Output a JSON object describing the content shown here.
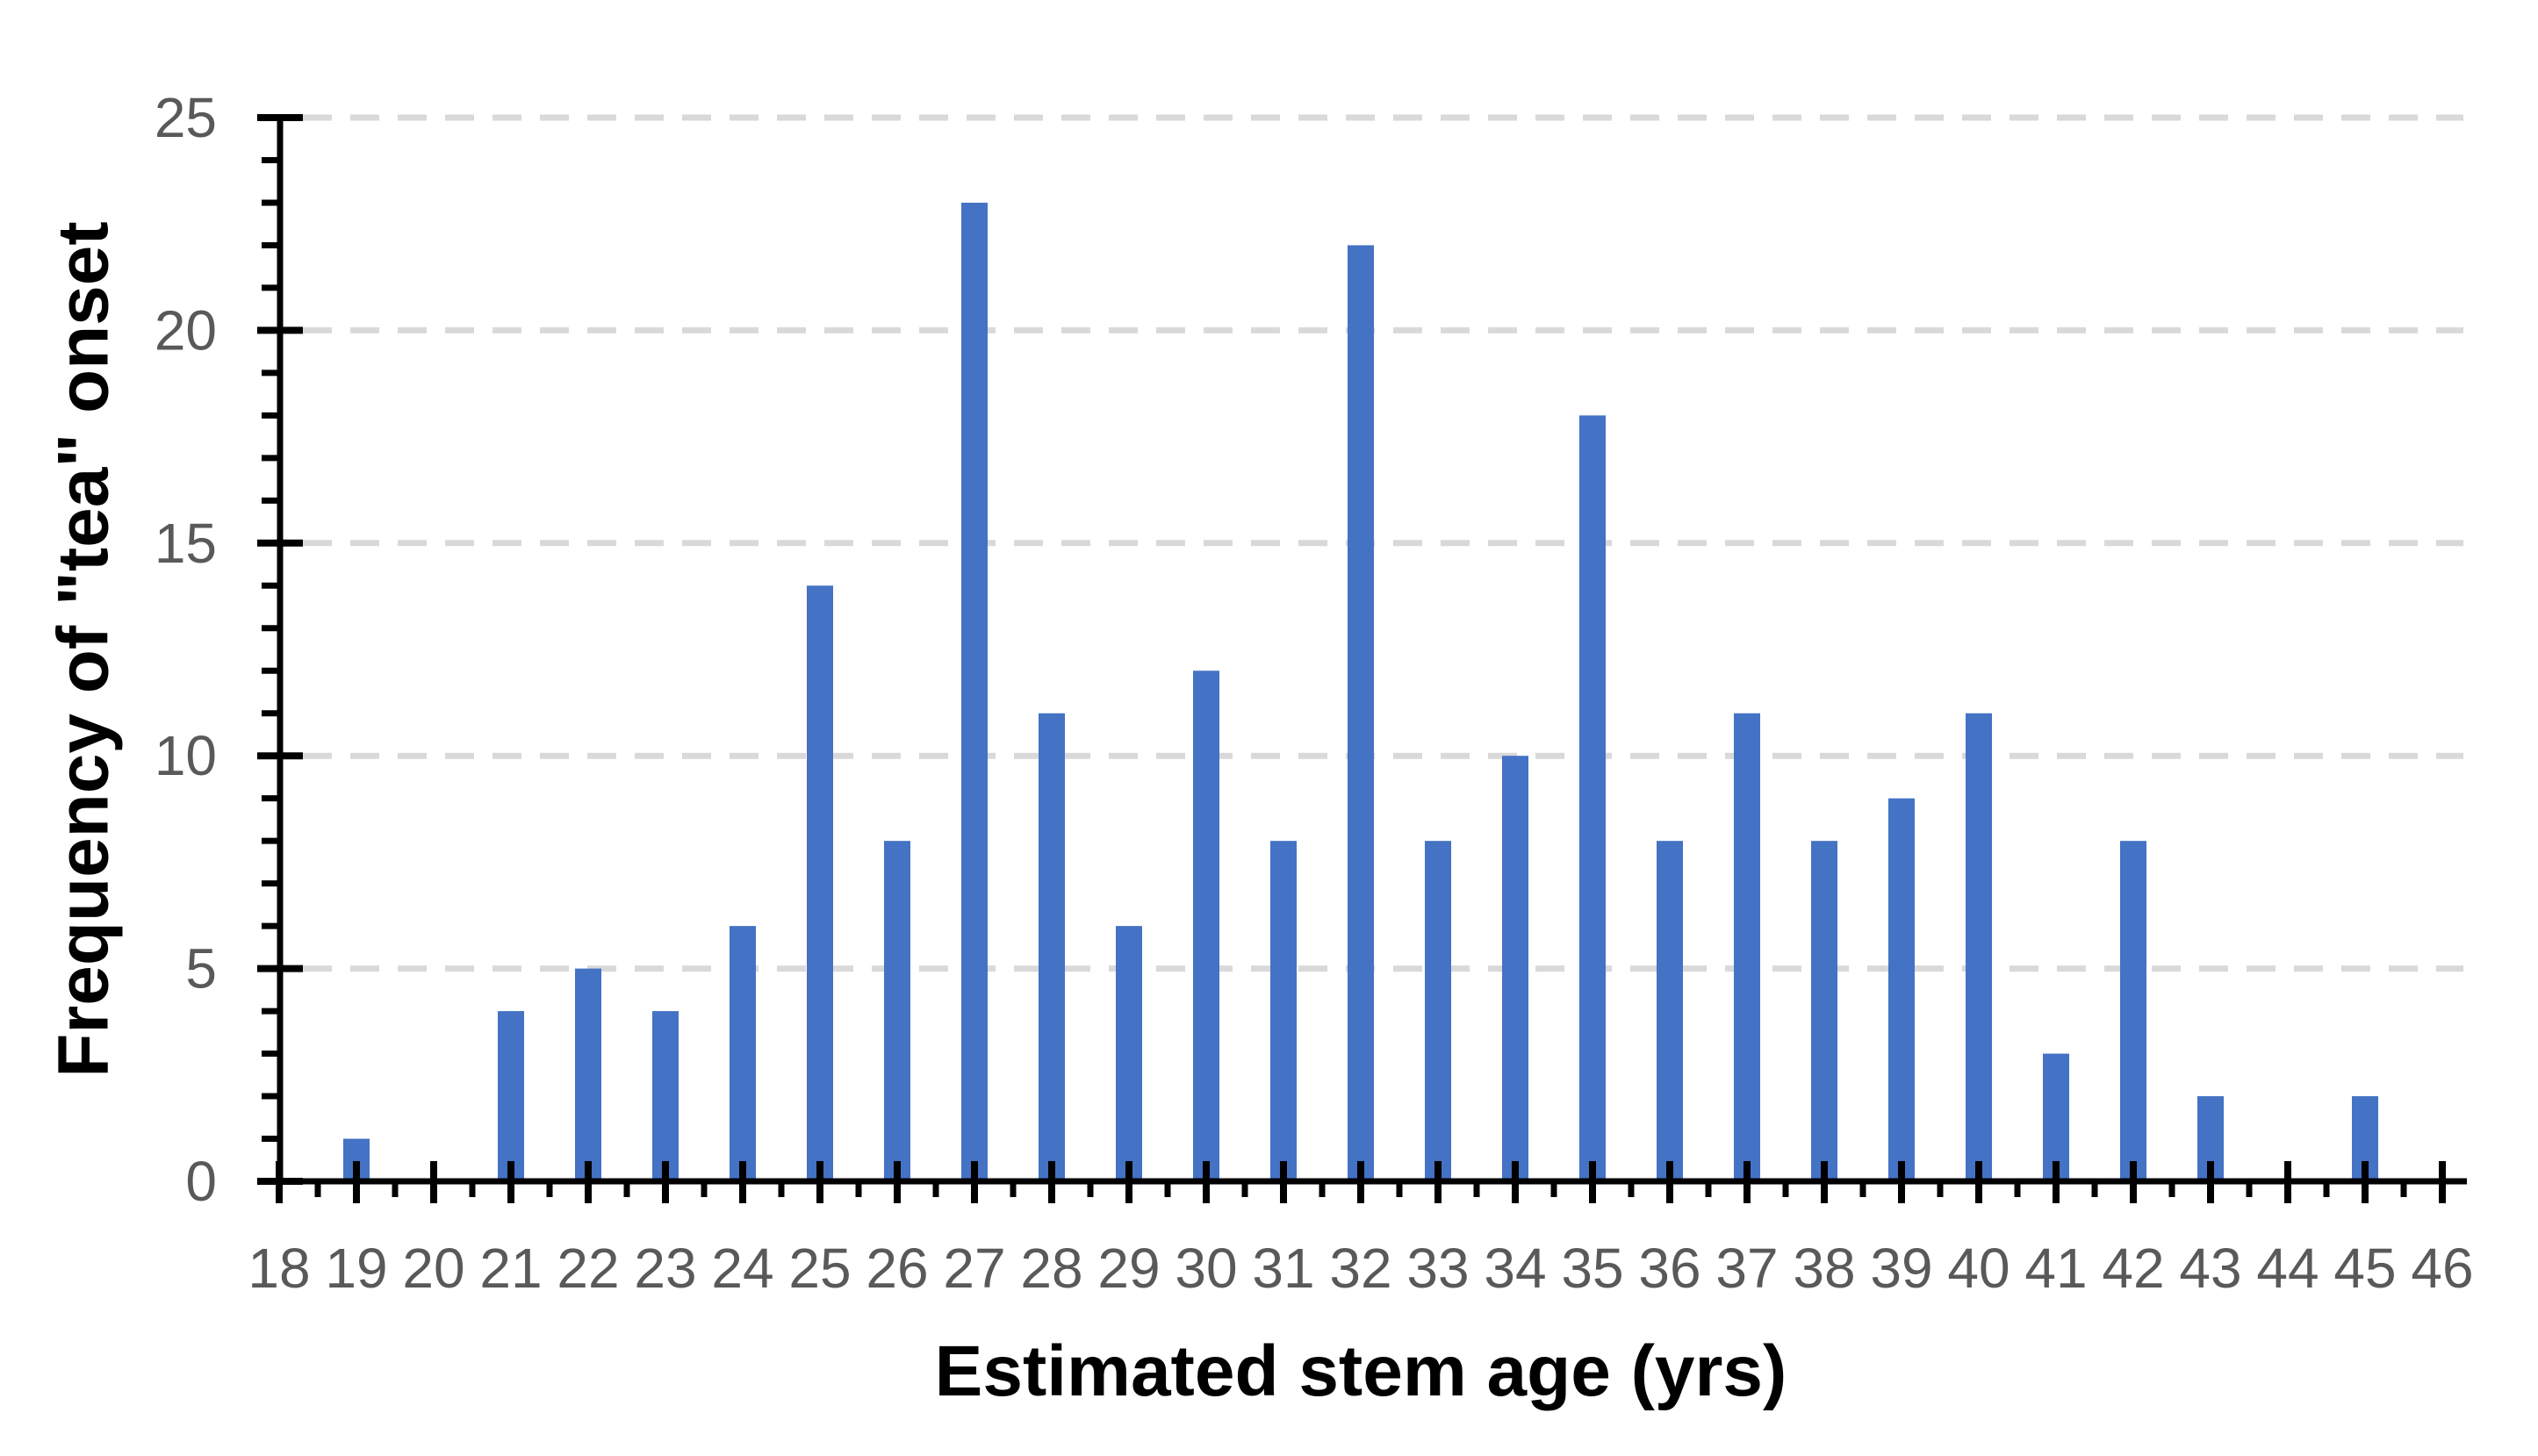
{
  "chart_data": {
    "type": "bar",
    "title": "",
    "xlabel": "Estimated stem age (yrs)",
    "ylabel": "Frequency of \"tea\" onset",
    "categories": [
      18,
      19,
      20,
      21,
      22,
      23,
      24,
      25,
      26,
      27,
      28,
      29,
      30,
      31,
      32,
      33,
      34,
      35,
      36,
      37,
      38,
      39,
      40,
      41,
      42,
      43,
      44,
      45,
      46
    ],
    "values": [
      0,
      1,
      0,
      4,
      5,
      4,
      6,
      14,
      8,
      23,
      11,
      6,
      12,
      8,
      22,
      8,
      10,
      18,
      8,
      11,
      8,
      9,
      11,
      3,
      8,
      2,
      0,
      2,
      0
    ],
    "ylim": [
      0,
      25
    ],
    "y_major_ticks": [
      0,
      5,
      10,
      15,
      20,
      25
    ],
    "y_minor_tick_interval": 1,
    "x_minor_tick_interval": 0.5,
    "grid": "horizontal-dashed-at-major-ticks",
    "legend": "none",
    "bar_color": "#4472C4",
    "grid_color": "#D9D9D9",
    "tick_label_color": "#595959",
    "axis_color": "#000000"
  }
}
